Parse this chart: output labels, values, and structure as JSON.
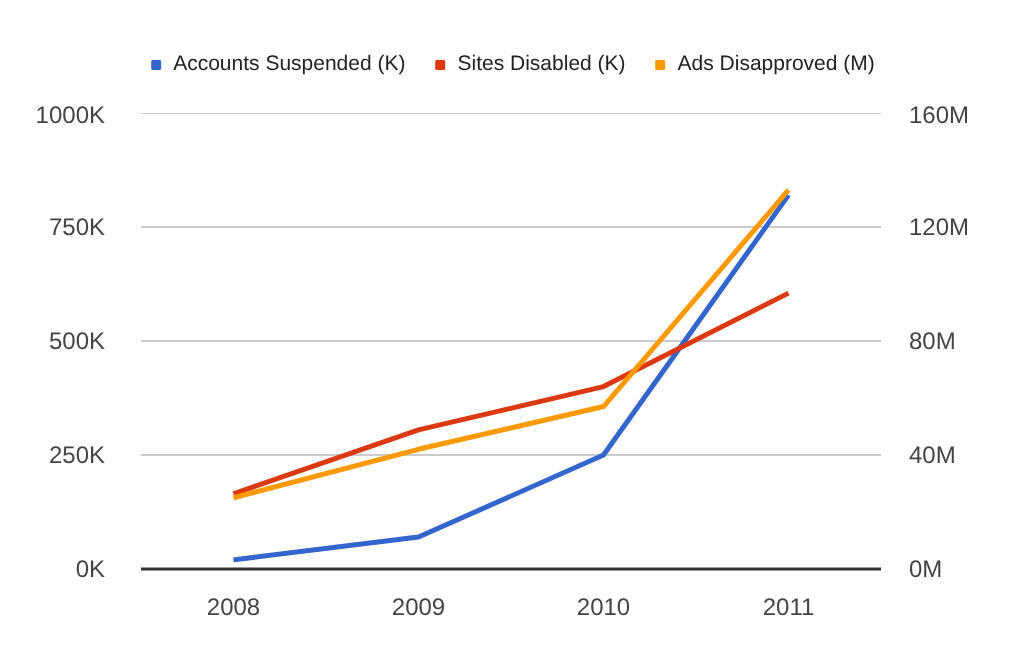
{
  "chart_data": {
    "type": "line",
    "categories": [
      "2008",
      "2009",
      "2010",
      "2011"
    ],
    "series": [
      {
        "name": "Accounts Suspended (K)",
        "color": "#3366cc",
        "values": [
          20,
          70,
          250,
          820
        ]
      },
      {
        "name": "Sites Disabled (K)",
        "color": "#dc3912",
        "values": [
          165,
          305,
          400,
          605
        ]
      },
      {
        "name": "Ads Disapproved (M)",
        "color": "#ff9900",
        "axis": "y2",
        "values": [
          25,
          42,
          57,
          133
        ]
      }
    ],
    "ylim": [
      0,
      1000
    ],
    "yticks": [
      {
        "value": 0,
        "label": "0K"
      },
      {
        "value": 250,
        "label": "250K"
      },
      {
        "value": 500,
        "label": "500K"
      },
      {
        "value": 750,
        "label": "750K"
      },
      {
        "value": 1000,
        "label": "1000K"
      }
    ],
    "y2lim": [
      0,
      160
    ],
    "y2ticks": [
      {
        "value": 0,
        "label": "0M"
      },
      {
        "value": 40,
        "label": "40M"
      },
      {
        "value": 80,
        "label": "80M"
      },
      {
        "value": 120,
        "label": "120M"
      },
      {
        "value": 160,
        "label": "160M"
      }
    ],
    "grid": "y",
    "legend": "top",
    "line_style": "solid"
  }
}
